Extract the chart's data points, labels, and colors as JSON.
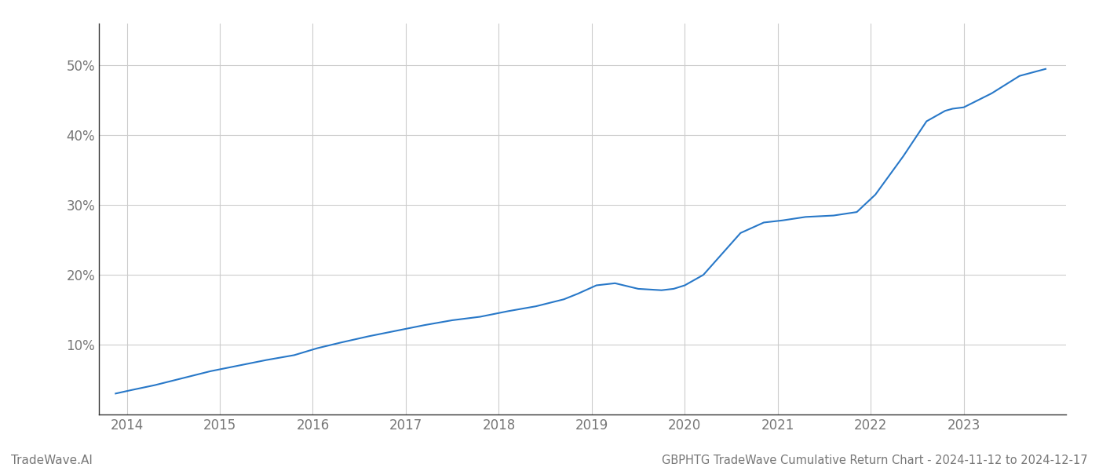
{
  "title": "GBPHTG TradeWave Cumulative Return Chart - 2024-11-12 to 2024-12-17",
  "watermark": "TradeWave.AI",
  "line_color": "#2878c8",
  "background_color": "#ffffff",
  "grid_color": "#cccccc",
  "x_years": [
    2014,
    2015,
    2016,
    2017,
    2018,
    2019,
    2020,
    2021,
    2022,
    2023
  ],
  "x_data": [
    2013.88,
    2014.05,
    2014.3,
    2014.6,
    2014.9,
    2015.2,
    2015.5,
    2015.8,
    2016.05,
    2016.3,
    2016.6,
    2016.9,
    2017.2,
    2017.5,
    2017.8,
    2018.1,
    2018.4,
    2018.7,
    2018.85,
    2019.05,
    2019.25,
    2019.5,
    2019.75,
    2019.88,
    2020.0,
    2020.2,
    2020.4,
    2020.6,
    2020.85,
    2021.05,
    2021.3,
    2021.6,
    2021.85,
    2022.05,
    2022.35,
    2022.6,
    2022.8,
    2022.88,
    2023.0,
    2023.3,
    2023.6,
    2023.88
  ],
  "y_data": [
    3.0,
    3.5,
    4.2,
    5.2,
    6.2,
    7.0,
    7.8,
    8.5,
    9.5,
    10.3,
    11.2,
    12.0,
    12.8,
    13.5,
    14.0,
    14.8,
    15.5,
    16.5,
    17.3,
    18.5,
    18.8,
    18.0,
    17.8,
    18.0,
    18.5,
    20.0,
    23.0,
    26.0,
    27.5,
    27.8,
    28.3,
    28.5,
    29.0,
    31.5,
    37.0,
    42.0,
    43.5,
    43.8,
    44.0,
    46.0,
    48.5,
    49.5
  ],
  "ylim": [
    0,
    56
  ],
  "xlim": [
    2013.7,
    2024.1
  ],
  "yticks": [
    10,
    20,
    30,
    40,
    50
  ],
  "ytick_labels": [
    "10%",
    "20%",
    "30%",
    "40%",
    "50%"
  ],
  "line_width": 1.5,
  "title_fontsize": 10.5,
  "tick_fontsize": 12,
  "watermark_fontsize": 11,
  "spine_color": "#333333",
  "tick_color": "#777777"
}
